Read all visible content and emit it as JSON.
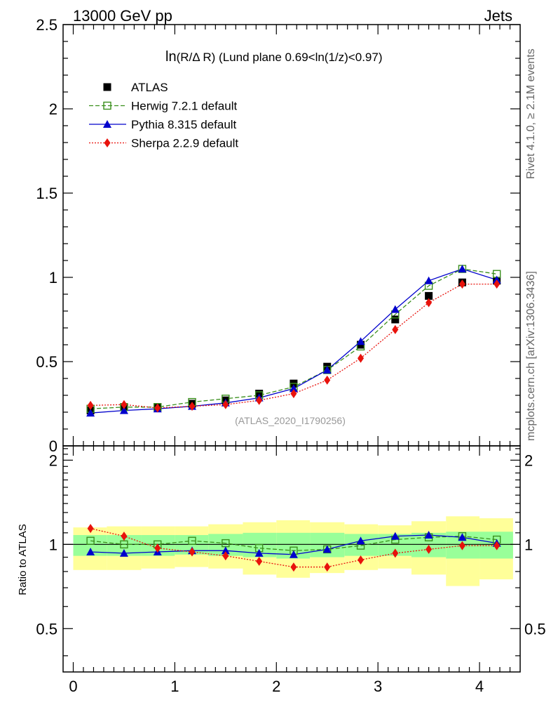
{
  "header": {
    "energy": "13000 GeV pp",
    "process": "Jets"
  },
  "side_labels": {
    "rivet": "Rivet 4.1.0, ≥ 2.1M events",
    "mcplots": "mcplots.cern.ch [arXiv:1306.3436]"
  },
  "chart_data": [
    {
      "type": "scatter",
      "panel": "main",
      "title": "ln(R/Δ R) (Lund plane 0.69<ln(1/z)<0.97)",
      "title_main": "ln",
      "title_rest": "(R/Δ R)  (Lund plane 0.69<ln(1/z)<0.97)",
      "watermark": "(ATLAS_2020_I1790256)",
      "xlabel": "",
      "ylabel": "",
      "xlim": [
        -0.1,
        4.4
      ],
      "ylim": [
        0,
        2.5
      ],
      "yticks": [
        0,
        0.5,
        1,
        1.5,
        2,
        2.5
      ],
      "ytick_labels": [
        "0",
        "0.5",
        "1",
        "1.5",
        "2",
        "2.5"
      ],
      "legend_position": "top-left",
      "x": [
        0.17,
        0.5,
        0.83,
        1.17,
        1.5,
        1.83,
        2.17,
        2.5,
        2.83,
        3.17,
        3.5,
        3.83,
        4.17
      ],
      "series": [
        {
          "name": "ATLAS",
          "key": "atlas",
          "color": "#000000",
          "marker": "square",
          "values": [
            0.21,
            0.23,
            0.23,
            0.25,
            0.27,
            0.31,
            0.37,
            0.47,
            0.6,
            0.75,
            0.89,
            0.97,
            0.98
          ]
        },
        {
          "name": "Herwig 7.2.1 default",
          "key": "herwig",
          "color": "#3a8f1d",
          "marker": "open-square",
          "line": "dashed",
          "values": [
            0.22,
            0.23,
            0.23,
            0.26,
            0.28,
            0.3,
            0.35,
            0.45,
            0.59,
            0.78,
            0.95,
            1.05,
            1.02
          ]
        },
        {
          "name": "Pythia 8.315 default",
          "key": "pythia",
          "color": "#0000cc",
          "marker": "triangle",
          "line": "solid",
          "values": [
            0.195,
            0.21,
            0.22,
            0.235,
            0.255,
            0.285,
            0.34,
            0.45,
            0.62,
            0.81,
            0.98,
            1.05,
            0.985
          ]
        },
        {
          "name": "Sherpa 2.2.9 default",
          "key": "sherpa",
          "color": "#e8120c",
          "marker": "diamond",
          "line": "dotted",
          "values": [
            0.24,
            0.245,
            0.225,
            0.235,
            0.245,
            0.27,
            0.31,
            0.39,
            0.52,
            0.69,
            0.85,
            0.96,
            0.96
          ]
        }
      ]
    },
    {
      "type": "scatter",
      "panel": "ratio",
      "ylabel": "Ratio to ATLAS",
      "xlim": [
        -0.1,
        4.4
      ],
      "ylim": [
        0.35,
        2.25
      ],
      "xticks": [
        0,
        1,
        2,
        3,
        4
      ],
      "xtick_labels": [
        "0",
        "1",
        "2",
        "3",
        "4"
      ],
      "yticks": [
        0.5,
        1,
        2
      ],
      "ytick_labels": [
        "0.5",
        "1",
        "2"
      ],
      "bin_edges": [
        0,
        0.33,
        0.67,
        1.0,
        1.33,
        1.67,
        2.0,
        2.33,
        2.67,
        3.0,
        3.33,
        3.67,
        4.0,
        4.33
      ],
      "band_inner_low": [
        0.91,
        0.91,
        0.91,
        0.92,
        0.91,
        0.9,
        0.89,
        0.9,
        0.91,
        0.91,
        0.9,
        0.89,
        0.89
      ],
      "band_inner_high": [
        1.08,
        1.08,
        1.08,
        1.08,
        1.09,
        1.1,
        1.1,
        1.1,
        1.09,
        1.09,
        1.1,
        1.11,
        1.11
      ],
      "band_outer_low": [
        0.81,
        0.81,
        0.82,
        0.83,
        0.82,
        0.78,
        0.76,
        0.79,
        0.81,
        0.82,
        0.78,
        0.71,
        0.75
      ],
      "band_outer_high": [
        1.15,
        1.16,
        1.16,
        1.16,
        1.18,
        1.2,
        1.22,
        1.2,
        1.18,
        1.17,
        1.21,
        1.26,
        1.24
      ],
      "band_colors": {
        "inner": "#99ff99",
        "outer": "#ffff99"
      },
      "series": [
        {
          "name": "Herwig 7.2.1 default",
          "key": "herwig",
          "values": [
            1.03,
            1.0,
            1.0,
            1.03,
            1.01,
            0.97,
            0.95,
            0.96,
            0.99,
            1.04,
            1.06,
            1.07,
            1.04
          ]
        },
        {
          "name": "Pythia 8.315 default",
          "key": "pythia",
          "values": [
            0.94,
            0.93,
            0.94,
            0.95,
            0.95,
            0.93,
            0.92,
            0.96,
            1.03,
            1.07,
            1.08,
            1.06,
            1.01
          ]
        },
        {
          "name": "Sherpa 2.2.9 default",
          "key": "sherpa",
          "values": [
            1.14,
            1.07,
            0.97,
            0.94,
            0.91,
            0.87,
            0.83,
            0.83,
            0.88,
            0.93,
            0.96,
            0.99,
            0.99
          ]
        }
      ]
    }
  ]
}
